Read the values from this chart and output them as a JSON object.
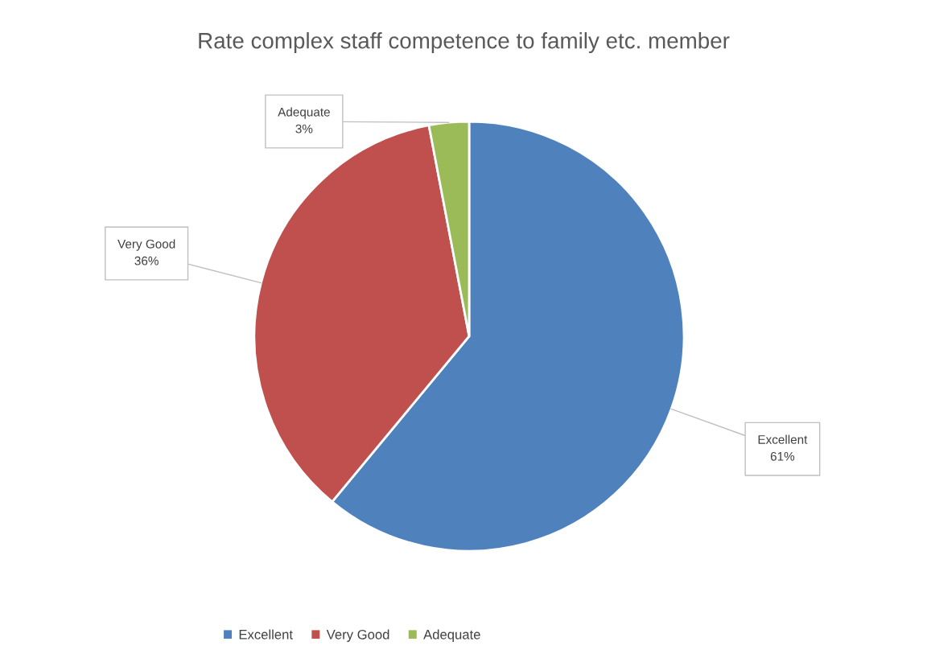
{
  "chart_data": {
    "type": "pie",
    "title": "Rate complex staff competence to family etc. member",
    "categories": [
      "Excellent",
      "Very Good",
      "Adequate"
    ],
    "values": [
      61,
      36,
      3
    ],
    "colors": [
      "#4f81bd",
      "#c0504d",
      "#9bbb59"
    ],
    "value_labels": [
      "61%",
      "36%",
      "3%"
    ],
    "legend": "bottom"
  }
}
